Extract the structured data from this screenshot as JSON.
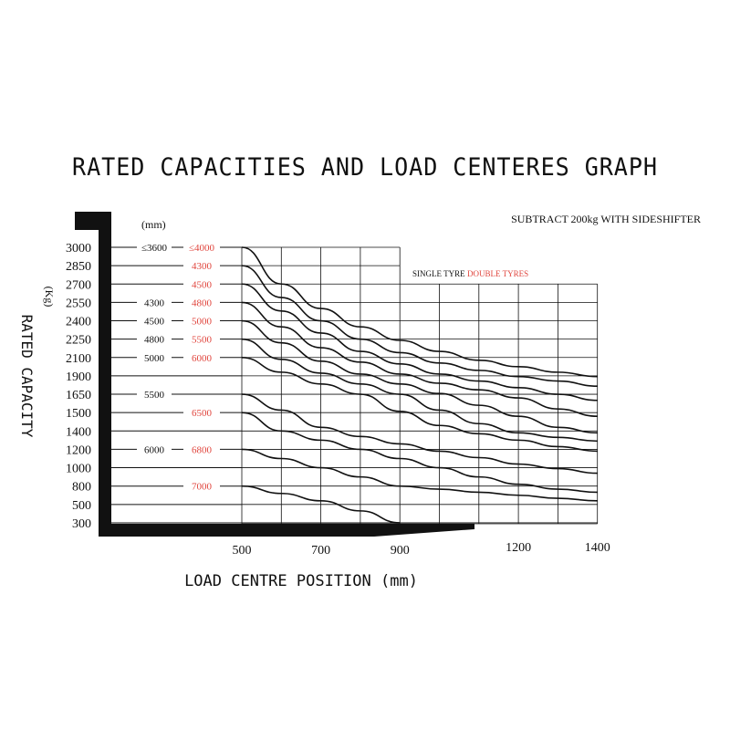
{
  "title": "RATED CAPACITIES AND LOAD CENTERES GRAPH",
  "note": "SUBTRACT 200kg WITH SIDESHIFTER",
  "legend": {
    "single": "SINGLE TYRE",
    "double": "DOUBLE TYRES"
  },
  "colors": {
    "ink": "#111111",
    "double_tyres": "#e0453d"
  },
  "chart_data": {
    "type": "line",
    "title": "RATED CAPACITIES AND LOAD CENTERES GRAPH",
    "xlabel": "LOAD CENTRE POSITION (mm)",
    "ylabel": "RATED CAPACITY",
    "yunit": "(Kg)",
    "mast_unit": "(mm)",
    "x_ticks": [
      "500",
      "700",
      "900",
      "1200",
      "1400"
    ],
    "y_ticks": [
      "3000",
      "2850",
      "2700",
      "2550",
      "2400",
      "2250",
      "2100",
      "1900",
      "1650",
      "1500",
      "1400",
      "1200",
      "1000",
      "800",
      "500",
      "300"
    ],
    "mast_rows": [
      {
        "capacity": "3000",
        "single": "≤3600",
        "double": "≤4000"
      },
      {
        "capacity": "2850",
        "single": "",
        "double": "4300"
      },
      {
        "capacity": "2700",
        "single": "",
        "double": "4500"
      },
      {
        "capacity": "2550",
        "single": "4300",
        "double": "4800"
      },
      {
        "capacity": "2400",
        "single": "4500",
        "double": "5000"
      },
      {
        "capacity": "2250",
        "single": "4800",
        "double": "5500"
      },
      {
        "capacity": "2100",
        "single": "5000",
        "double": "6000"
      },
      {
        "capacity": "1900",
        "single": "",
        "double": ""
      },
      {
        "capacity": "1650",
        "single": "5500",
        "double": ""
      },
      {
        "capacity": "1500",
        "single": "",
        "double": "6500"
      },
      {
        "capacity": "1400",
        "single": "",
        "double": ""
      },
      {
        "capacity": "1200",
        "single": "6000",
        "double": "6800"
      },
      {
        "capacity": "1000",
        "single": "",
        "double": ""
      },
      {
        "capacity": "800",
        "single": "",
        "double": "7000"
      },
      {
        "capacity": "500",
        "single": "",
        "double": ""
      },
      {
        "capacity": "300",
        "single": "",
        "double": ""
      }
    ],
    "series": [
      {
        "x": [
          500,
          600,
          700,
          800,
          900,
          1000,
          1100,
          1200,
          1300,
          1400
        ],
        "y": [
          3000,
          2700,
          2500,
          2350,
          2240,
          2150,
          2070,
          2000,
          1940,
          1890
        ]
      },
      {
        "x": [
          500,
          600,
          700,
          800,
          900,
          1000,
          1100,
          1200,
          1300,
          1400
        ],
        "y": [
          2850,
          2590,
          2400,
          2250,
          2140,
          2040,
          1960,
          1890,
          1830,
          1760
        ]
      },
      {
        "x": [
          500,
          600,
          700,
          800,
          900,
          1000,
          1100,
          1200,
          1300,
          1400
        ],
        "y": [
          2700,
          2480,
          2300,
          2150,
          2030,
          1920,
          1830,
          1740,
          1650,
          1600
        ]
      },
      {
        "x": [
          500,
          600,
          700,
          800,
          900,
          1000,
          1100,
          1200,
          1300,
          1400
        ],
        "y": [
          2550,
          2350,
          2180,
          2050,
          1920,
          1800,
          1710,
          1620,
          1530,
          1480
        ]
      },
      {
        "x": [
          500,
          600,
          700,
          800,
          900,
          1000,
          1100,
          1200,
          1300,
          1400
        ],
        "y": [
          2400,
          2220,
          2060,
          1920,
          1790,
          1660,
          1560,
          1480,
          1420,
          1380
        ]
      },
      {
        "x": [
          500,
          600,
          700,
          800,
          900,
          1000,
          1100,
          1200,
          1300,
          1400
        ],
        "y": [
          2250,
          2080,
          1930,
          1790,
          1650,
          1520,
          1440,
          1380,
          1330,
          1290
        ]
      },
      {
        "x": [
          500,
          600,
          700,
          800,
          900,
          1000,
          1100,
          1200,
          1300,
          1400
        ],
        "y": [
          2100,
          1940,
          1790,
          1650,
          1510,
          1430,
          1370,
          1300,
          1230,
          1180
        ]
      },
      {
        "x": [
          500,
          600,
          700,
          800,
          900,
          1000,
          1100,
          1200,
          1300,
          1400
        ],
        "y": [
          1650,
          1520,
          1420,
          1340,
          1260,
          1180,
          1110,
          1040,
          990,
          940
        ]
      },
      {
        "x": [
          500,
          600,
          700,
          800,
          900,
          1000,
          1100,
          1200,
          1300,
          1400
        ],
        "y": [
          1500,
          1400,
          1300,
          1200,
          1100,
          1000,
          900,
          820,
          750,
          700
        ]
      },
      {
        "x": [
          500,
          600,
          700,
          800,
          900,
          1000,
          1100,
          1200,
          1300,
          1400
        ],
        "y": [
          1200,
          1100,
          1000,
          900,
          800,
          750,
          700,
          650,
          600,
          560
        ]
      },
      {
        "x": [
          500,
          600,
          700,
          800,
          900
        ],
        "y": [
          800,
          680,
          560,
          430,
          300
        ]
      }
    ]
  }
}
